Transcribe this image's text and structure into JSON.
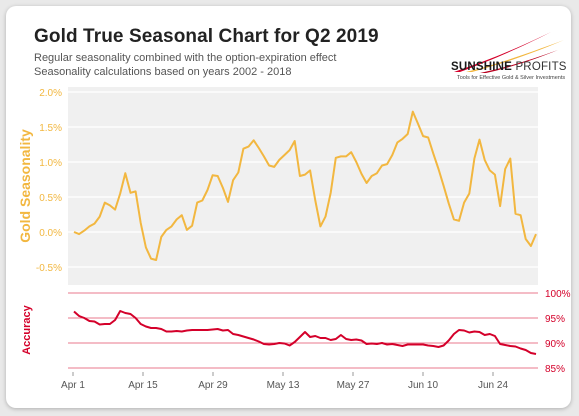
{
  "header": {
    "title": "Gold True Seasonal Chart for Q2 2019",
    "subtitle1": "Regular seasonality combined with the option-expiration effect",
    "subtitle2": "Seasonality calculations based on years 2002 - 2018"
  },
  "logo": {
    "name_bold": "SUNSHINE",
    "name_light": "PROFITS",
    "tagline": "Tools for Effective Gold & Silver Investments"
  },
  "colors": {
    "seasonality": "#f2b740",
    "accuracy": "#d4002a",
    "plot_bg": "#f0f0f0"
  },
  "chart_data": {
    "type": "line",
    "x_ticks": [
      "Apr 1",
      "Apr 15",
      "Apr 29",
      "May 13",
      "May 27",
      "Jun 10",
      "Jun 24"
    ],
    "top_panel": {
      "ylabel": "Gold Seasonality",
      "y_ticks": [
        "2.0%",
        "1.5%",
        "1.0%",
        "0.5%",
        "0.0%",
        "-0.5%"
      ],
      "ylim": [
        -0.5,
        2.0
      ],
      "series": [
        {
          "values": [
            0.0,
            -0.03,
            0.02,
            0.08,
            0.12,
            0.22,
            0.42,
            0.38,
            0.32,
            0.55,
            0.84,
            0.56,
            0.58,
            0.13,
            -0.22,
            -0.38,
            -0.4,
            -0.07,
            0.03,
            0.08,
            0.18,
            0.24,
            0.03,
            0.09,
            0.42,
            0.45,
            0.6,
            0.81,
            0.8,
            0.63,
            0.43,
            0.74,
            0.85,
            1.19,
            1.22,
            1.31,
            1.2,
            1.08,
            0.95,
            0.93,
            1.03,
            1.1,
            1.17,
            1.3,
            0.8,
            0.82,
            0.88,
            0.45,
            0.08,
            0.22,
            0.56,
            1.06,
            1.08,
            1.08,
            1.14,
            1.0,
            0.83,
            0.7,
            0.8,
            0.84,
            0.95,
            0.97,
            1.1,
            1.28,
            1.33,
            1.4,
            1.72,
            1.55,
            1.37,
            1.35,
            1.12,
            0.9,
            0.66,
            0.41,
            0.18,
            0.16,
            0.42,
            0.55,
            1.05,
            1.32,
            1.03,
            0.88,
            0.82,
            0.37,
            0.9,
            1.05,
            0.26,
            0.24,
            -0.1,
            -0.2,
            -0.03
          ]
        }
      ]
    },
    "bottom_panel": {
      "ylabel": "Accuracy",
      "y_ticks": [
        "100%",
        "95%",
        "90%",
        "85%"
      ],
      "ylim": [
        85,
        100
      ],
      "series": [
        {
          "values": [
            96.3,
            95.4,
            95.0,
            94.4,
            94.3,
            93.7,
            93.8,
            93.8,
            94.6,
            96.4,
            96.0,
            95.8,
            95.0,
            93.8,
            93.3,
            93.0,
            93.0,
            92.8,
            92.3,
            92.3,
            92.4,
            92.3,
            92.5,
            92.6,
            92.6,
            92.6,
            92.6,
            92.7,
            92.8,
            92.5,
            92.6,
            91.8,
            91.6,
            91.3,
            91.0,
            90.7,
            90.3,
            89.8,
            89.7,
            89.8,
            90.0,
            89.9,
            89.5,
            90.2,
            91.2,
            92.2,
            91.2,
            91.4,
            91.0,
            91.0,
            90.6,
            90.8,
            91.6,
            90.8,
            90.6,
            90.7,
            90.5,
            89.8,
            89.9,
            89.8,
            90.0,
            89.7,
            89.8,
            89.6,
            89.4,
            89.7,
            89.7,
            89.7,
            89.7,
            89.5,
            89.4,
            89.2,
            89.5,
            90.5,
            91.8,
            92.6,
            92.5,
            92.1,
            92.3,
            92.2,
            91.6,
            91.8,
            91.4,
            89.8,
            89.6,
            89.4,
            89.3,
            88.9,
            88.6,
            88.0,
            87.8
          ]
        }
      ]
    }
  }
}
